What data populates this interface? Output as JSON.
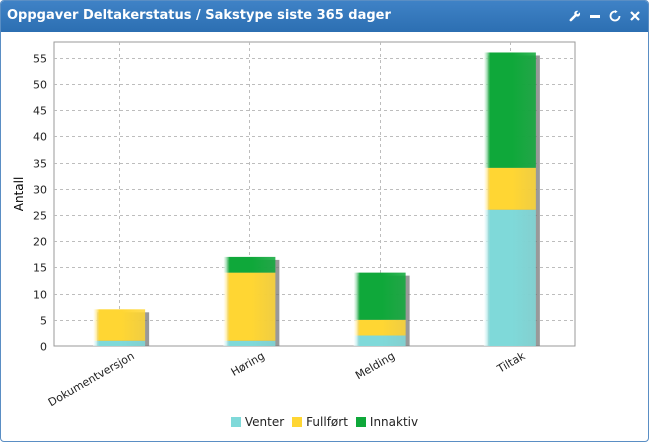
{
  "window": {
    "title": "Oppgaver Deltakerstatus / Sakstype siste 365 dager",
    "tools": [
      "wrench-icon",
      "minimize-icon",
      "refresh-icon",
      "close-icon"
    ]
  },
  "chart_data": {
    "type": "bar",
    "stacked": true,
    "categories": [
      "Dokumentversjon",
      "Høring",
      "Melding",
      "Tiltak"
    ],
    "series": [
      {
        "name": "Venter",
        "color": "#7fd9d9",
        "values": [
          1,
          1,
          2,
          26
        ]
      },
      {
        "name": "Fullført",
        "color": "#ffd633",
        "values": [
          6,
          13,
          3,
          8
        ]
      },
      {
        "name": "Innaktiv",
        "color": "#0fa83a",
        "values": [
          0,
          3,
          9,
          22
        ]
      }
    ],
    "title": "",
    "xlabel": "",
    "ylabel": "Antall",
    "ylim": [
      0,
      58
    ],
    "yticks": [
      0,
      5,
      10,
      15,
      20,
      25,
      30,
      35,
      40,
      45,
      50,
      55
    ],
    "grid": true,
    "legend_position": "bottom"
  }
}
